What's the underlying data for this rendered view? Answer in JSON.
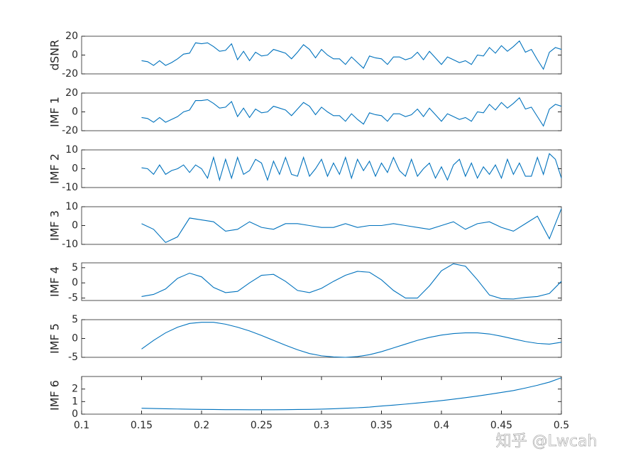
{
  "chart_data": [
    {
      "type": "line",
      "ylabel": "dSNR",
      "xlim": [
        0.1,
        0.5
      ],
      "ylim": [
        -20,
        20
      ],
      "yticks": [
        -20,
        0,
        20
      ],
      "x": [
        0.15,
        0.155,
        0.16,
        0.165,
        0.17,
        0.175,
        0.18,
        0.185,
        0.19,
        0.195,
        0.2,
        0.205,
        0.21,
        0.215,
        0.22,
        0.225,
        0.23,
        0.235,
        0.24,
        0.245,
        0.25,
        0.255,
        0.26,
        0.265,
        0.27,
        0.275,
        0.28,
        0.285,
        0.29,
        0.295,
        0.3,
        0.305,
        0.31,
        0.315,
        0.32,
        0.325,
        0.33,
        0.335,
        0.34,
        0.345,
        0.35,
        0.355,
        0.36,
        0.365,
        0.37,
        0.375,
        0.38,
        0.385,
        0.39,
        0.395,
        0.4,
        0.405,
        0.41,
        0.415,
        0.42,
        0.425,
        0.43,
        0.435,
        0.44,
        0.445,
        0.45,
        0.455,
        0.46,
        0.465,
        0.47,
        0.475,
        0.48,
        0.485,
        0.49,
        0.495,
        0.5
      ],
      "series": [
        {
          "color": "#0072bd",
          "values": [
            -6,
            -7,
            -11,
            -6,
            -11,
            -8,
            -4,
            1,
            2,
            13,
            12,
            13,
            9,
            4,
            5,
            12,
            -5,
            4,
            -6,
            3,
            -1,
            0,
            6,
            4,
            2,
            -4,
            3,
            11,
            6,
            -3,
            6,
            0,
            -4,
            -4,
            -10,
            -2,
            -8,
            -14,
            -1,
            -3,
            -4,
            -10,
            -2,
            -2,
            -5,
            -3,
            3,
            -5,
            4,
            -3,
            -10,
            -2,
            -5,
            -8,
            -6,
            -10,
            0,
            -1,
            8,
            2,
            10,
            4,
            9,
            15,
            3,
            6,
            -5,
            -15,
            3,
            8,
            6
          ]
        }
      ]
    },
    {
      "type": "line",
      "ylabel": "IMF 1",
      "xlim": [
        0.1,
        0.5
      ],
      "ylim": [
        -20,
        20
      ],
      "yticks": [
        -20,
        0,
        20
      ],
      "x": [
        0.15,
        0.155,
        0.16,
        0.165,
        0.17,
        0.175,
        0.18,
        0.185,
        0.19,
        0.195,
        0.2,
        0.205,
        0.21,
        0.215,
        0.22,
        0.225,
        0.23,
        0.235,
        0.24,
        0.245,
        0.25,
        0.255,
        0.26,
        0.265,
        0.27,
        0.275,
        0.28,
        0.285,
        0.29,
        0.295,
        0.3,
        0.305,
        0.31,
        0.315,
        0.32,
        0.325,
        0.33,
        0.335,
        0.34,
        0.345,
        0.35,
        0.355,
        0.36,
        0.365,
        0.37,
        0.375,
        0.38,
        0.385,
        0.39,
        0.395,
        0.4,
        0.405,
        0.41,
        0.415,
        0.42,
        0.425,
        0.43,
        0.435,
        0.44,
        0.445,
        0.45,
        0.455,
        0.46,
        0.465,
        0.47,
        0.475,
        0.48,
        0.485,
        0.49,
        0.495,
        0.5
      ],
      "series": [
        {
          "color": "#0072bd",
          "values": [
            -6,
            -7,
            -11,
            -6,
            -11,
            -8,
            -5,
            0,
            2,
            12,
            12,
            13,
            9,
            4,
            5,
            11,
            -5,
            4,
            -6,
            3,
            -1,
            0,
            6,
            4,
            2,
            -4,
            3,
            10,
            6,
            -3,
            5,
            0,
            -4,
            -4,
            -10,
            -2,
            -8,
            -13,
            -1,
            -3,
            -4,
            -10,
            -2,
            -2,
            -5,
            -3,
            3,
            -5,
            4,
            -3,
            -10,
            -2,
            -5,
            -8,
            -6,
            -10,
            0,
            -1,
            8,
            2,
            10,
            4,
            9,
            15,
            3,
            5,
            -5,
            -15,
            3,
            8,
            6
          ]
        }
      ]
    },
    {
      "type": "line",
      "ylabel": "IMF 2",
      "xlim": [
        0.1,
        0.5
      ],
      "ylim": [
        -10,
        10
      ],
      "yticks": [
        -10,
        0,
        10
      ],
      "x": [
        0.15,
        0.155,
        0.16,
        0.165,
        0.17,
        0.175,
        0.18,
        0.185,
        0.19,
        0.195,
        0.2,
        0.205,
        0.21,
        0.215,
        0.22,
        0.225,
        0.23,
        0.235,
        0.24,
        0.245,
        0.25,
        0.255,
        0.26,
        0.265,
        0.27,
        0.275,
        0.28,
        0.285,
        0.29,
        0.295,
        0.3,
        0.305,
        0.31,
        0.315,
        0.32,
        0.325,
        0.33,
        0.335,
        0.34,
        0.345,
        0.35,
        0.355,
        0.36,
        0.365,
        0.37,
        0.375,
        0.38,
        0.385,
        0.39,
        0.395,
        0.4,
        0.405,
        0.41,
        0.415,
        0.42,
        0.425,
        0.43,
        0.435,
        0.44,
        0.445,
        0.45,
        0.455,
        0.46,
        0.465,
        0.47,
        0.475,
        0.48,
        0.485,
        0.49,
        0.495,
        0.5
      ],
      "series": [
        {
          "color": "#0072bd",
          "values": [
            0.5,
            0,
            -3,
            2,
            -3,
            -1,
            0,
            2,
            -2,
            2,
            0,
            -5,
            6,
            -6,
            5,
            -5,
            6,
            -3,
            -1,
            5,
            3,
            -6,
            4,
            -3,
            6,
            -3,
            -4,
            6,
            -4,
            0,
            5,
            -4,
            3,
            -3,
            6,
            -5,
            5,
            -1,
            4,
            -4,
            3,
            -2,
            6,
            -1,
            -4,
            5,
            -4,
            0,
            3,
            -5,
            1,
            -6,
            2,
            5,
            -4,
            3,
            -5,
            1,
            -3,
            2,
            -5,
            5,
            -3,
            3,
            -4,
            -4,
            6,
            -3,
            8,
            5,
            -5
          ]
        }
      ]
    },
    {
      "type": "line",
      "ylabel": "IMF 3",
      "xlim": [
        0.1,
        0.5
      ],
      "ylim": [
        -10,
        10
      ],
      "yticks": [
        -10,
        0,
        10
      ],
      "x": [
        0.15,
        0.16,
        0.17,
        0.18,
        0.19,
        0.2,
        0.21,
        0.22,
        0.23,
        0.24,
        0.25,
        0.26,
        0.27,
        0.28,
        0.29,
        0.3,
        0.31,
        0.32,
        0.33,
        0.34,
        0.35,
        0.36,
        0.37,
        0.38,
        0.39,
        0.4,
        0.41,
        0.42,
        0.43,
        0.44,
        0.45,
        0.46,
        0.47,
        0.48,
        0.49,
        0.5
      ],
      "series": [
        {
          "color": "#0072bd",
          "values": [
            1,
            -2,
            -9,
            -6,
            4,
            3,
            2,
            -3,
            -2,
            2,
            -1,
            -2,
            1,
            1,
            0,
            -1,
            -1,
            1,
            -1,
            0,
            0,
            1,
            0,
            -1,
            -2,
            0,
            2,
            -2,
            1,
            2,
            -1,
            -3,
            1,
            5,
            -7,
            9
          ]
        }
      ]
    },
    {
      "type": "line",
      "ylabel": "IMF 4",
      "xlim": [
        0.1,
        0.5
      ],
      "ylim": [
        -5.8,
        6.6
      ],
      "yticks": [
        -5,
        0,
        5
      ],
      "x": [
        0.15,
        0.16,
        0.17,
        0.18,
        0.19,
        0.2,
        0.21,
        0.22,
        0.23,
        0.24,
        0.25,
        0.26,
        0.27,
        0.28,
        0.29,
        0.3,
        0.31,
        0.32,
        0.33,
        0.34,
        0.35,
        0.36,
        0.37,
        0.38,
        0.39,
        0.4,
        0.41,
        0.42,
        0.43,
        0.44,
        0.45,
        0.46,
        0.47,
        0.48,
        0.49,
        0.5
      ],
      "series": [
        {
          "color": "#0072bd",
          "values": [
            -4.5,
            -3.8,
            -2,
            1.5,
            3.2,
            2,
            -1.5,
            -3.2,
            -2.8,
            0,
            2.5,
            2.8,
            0.5,
            -2.5,
            -3.2,
            -1.8,
            0.5,
            2.5,
            3.8,
            3.5,
            1,
            -2.5,
            -5,
            -5,
            -1,
            4,
            6.3,
            5.5,
            1,
            -4,
            -5.2,
            -5.3,
            -4.8,
            -4.5,
            -3.5,
            0.5
          ]
        }
      ]
    },
    {
      "type": "line",
      "ylabel": "IMF 5",
      "xlim": [
        0.1,
        0.5
      ],
      "ylim": [
        -5,
        5
      ],
      "yticks": [
        -5,
        0,
        5
      ],
      "x": [
        0.15,
        0.16,
        0.17,
        0.18,
        0.19,
        0.2,
        0.21,
        0.22,
        0.23,
        0.24,
        0.25,
        0.26,
        0.27,
        0.28,
        0.29,
        0.3,
        0.31,
        0.32,
        0.33,
        0.34,
        0.35,
        0.36,
        0.37,
        0.38,
        0.39,
        0.4,
        0.41,
        0.42,
        0.43,
        0.44,
        0.45,
        0.46,
        0.47,
        0.48,
        0.49,
        0.5
      ],
      "series": [
        {
          "color": "#0072bd",
          "values": [
            -2.8,
            -0.5,
            1.5,
            3,
            4,
            4.3,
            4.3,
            3.8,
            3,
            2,
            0.8,
            -0.5,
            -1.8,
            -3,
            -4,
            -4.6,
            -4.9,
            -5,
            -4.8,
            -4.3,
            -3.5,
            -2.5,
            -1.5,
            -0.5,
            0.3,
            0.9,
            1.3,
            1.5,
            1.5,
            1.2,
            0.6,
            -0.1,
            -0.8,
            -1.3,
            -1.5,
            -1
          ]
        }
      ]
    },
    {
      "type": "line",
      "ylabel": "IMF 6",
      "xlim": [
        0.1,
        0.5
      ],
      "ylim": [
        0,
        3
      ],
      "yticks": [
        0,
        1,
        2
      ],
      "xticks": [
        0.1,
        0.15,
        0.2,
        0.25,
        0.3,
        0.35,
        0.4,
        0.45,
        0.5
      ],
      "x": [
        0.15,
        0.16,
        0.17,
        0.18,
        0.19,
        0.2,
        0.21,
        0.22,
        0.23,
        0.24,
        0.25,
        0.26,
        0.27,
        0.28,
        0.29,
        0.3,
        0.31,
        0.32,
        0.33,
        0.34,
        0.35,
        0.36,
        0.37,
        0.38,
        0.39,
        0.4,
        0.41,
        0.42,
        0.43,
        0.44,
        0.45,
        0.46,
        0.47,
        0.48,
        0.49,
        0.5
      ],
      "series": [
        {
          "color": "#0072bd",
          "values": [
            0.47,
            0.45,
            0.43,
            0.41,
            0.39,
            0.38,
            0.37,
            0.36,
            0.36,
            0.35,
            0.35,
            0.35,
            0.36,
            0.37,
            0.38,
            0.4,
            0.43,
            0.47,
            0.51,
            0.56,
            0.65,
            0.72,
            0.8,
            0.89,
            0.98,
            1.08,
            1.19,
            1.31,
            1.44,
            1.58,
            1.73,
            1.88,
            2.08,
            2.3,
            2.55,
            2.9
          ]
        }
      ]
    }
  ],
  "watermark": "知乎 @Lwcah"
}
